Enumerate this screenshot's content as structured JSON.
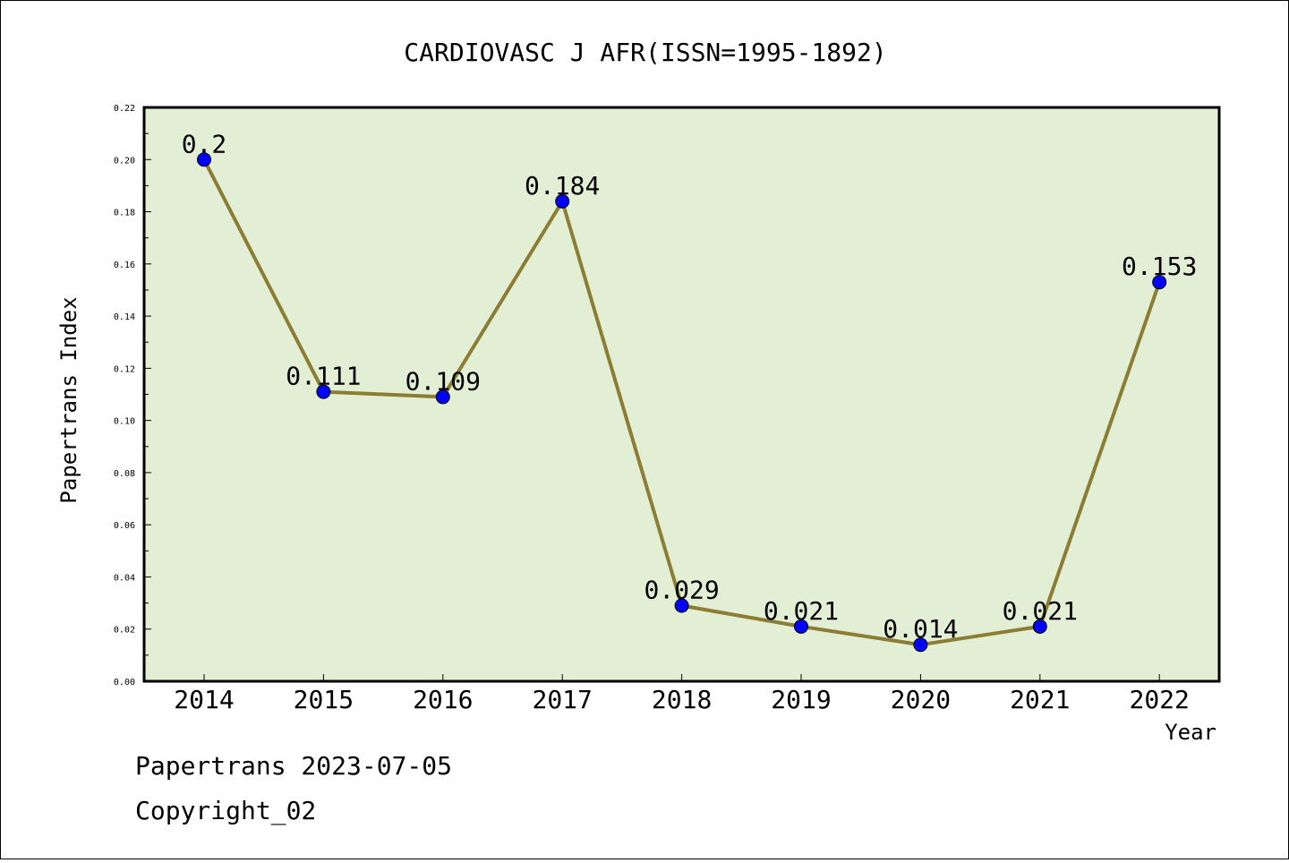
{
  "title": "CARDIOVASC J AFR(ISSN=1995-1892)",
  "footer": {
    "line1": "Papertrans 2023-07-05",
    "line2": "Copyright_02"
  },
  "chart_data": {
    "type": "line",
    "title": "CARDIOVASC J AFR(ISSN=1995-1892)",
    "xlabel": "Year",
    "ylabel": "Papertrans Index",
    "categories": [
      "2014",
      "2015",
      "2016",
      "2017",
      "2018",
      "2019",
      "2020",
      "2021",
      "2022"
    ],
    "values": [
      0.2,
      0.111,
      0.109,
      0.184,
      0.029,
      0.021,
      0.014,
      0.021,
      0.153
    ],
    "value_labels": [
      "0.2",
      "0.111",
      "0.109",
      "0.184",
      "0.029",
      "0.021",
      "0.014",
      "0.021",
      "0.153"
    ],
    "ylim": [
      0,
      0.22
    ],
    "yticks": [
      0.0,
      0.02,
      0.04,
      0.06,
      0.08,
      0.1,
      0.12,
      0.14,
      0.16,
      0.18,
      0.2,
      0.22
    ],
    "ytick_labels": [
      "0.00",
      "0.02",
      "0.04",
      "0.06",
      "0.08",
      "0.10",
      "0.12",
      "0.14",
      "0.16",
      "0.18",
      "0.20",
      "0.22"
    ],
    "grid": false,
    "legend": "none",
    "colors": {
      "plot_background": "#e2efd5",
      "line": "#8b7d34",
      "marker": "#0000ff"
    }
  }
}
